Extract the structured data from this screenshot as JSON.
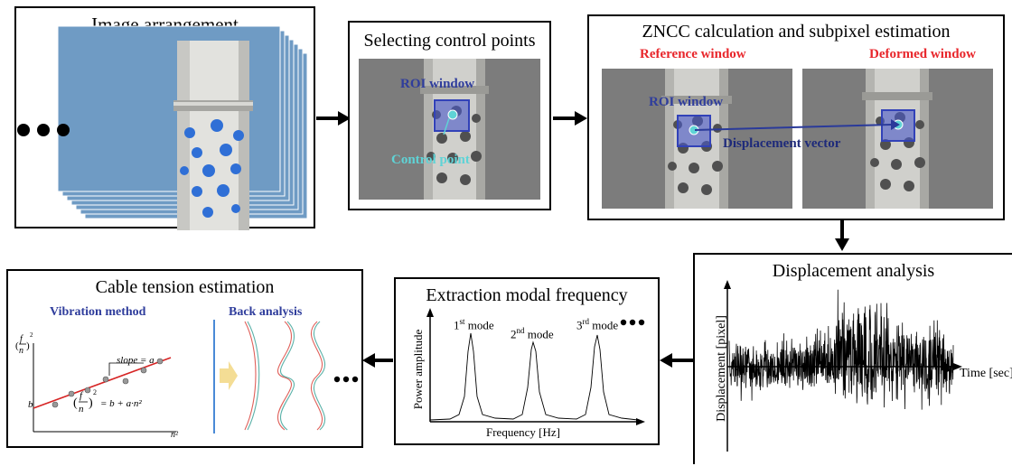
{
  "colors": {
    "photo_bg": "#7c7c7c",
    "pipe": "#d6d6d2",
    "roi": "#4a58c8",
    "control_point": "#5fd3d6",
    "reference_label": "#e8262b",
    "method_label": "#2f3d9c",
    "fit_line": "#d62424",
    "sky": "#6f9bc4"
  },
  "boxes": {
    "image_arrangement": {
      "title": "Image arrangement"
    },
    "selecting_control_points": {
      "title": "Selecting control points",
      "roi_label": "ROI window",
      "control_point_label": "Control point"
    },
    "zncc": {
      "title": "ZNCC calculation and subpixel estimation",
      "reference_label": "Reference window",
      "deformed_label": "Deformed window",
      "roi_label": "ROI window",
      "vector_label": "Displacement vector"
    },
    "displacement_analysis": {
      "title": "Displacement analysis",
      "ylabel": "Displacement [pixel]",
      "xlabel": "Time [sec]"
    },
    "extraction_modal": {
      "title": "Extraction modal frequency",
      "ylabel": "Power amplitude",
      "xlabel": "Frequency [Hz]",
      "modes": [
        {
          "num": "1",
          "sup": "st",
          "word": " mode"
        },
        {
          "num": "2",
          "sup": "nd",
          "word": " mode"
        },
        {
          "num": "3",
          "sup": "rd",
          "word": " mode"
        }
      ]
    },
    "cable_tension": {
      "title": "Cable tension estimation",
      "vibration_label": "Vibration method",
      "back_label": "Back analysis",
      "slope_label": "slope = a",
      "b_label": "b",
      "n2_label": "n²",
      "eq_rhs": "= b + a·n²"
    }
  },
  "chart_data": [
    {
      "type": "line",
      "title": "Displacement analysis",
      "xlabel": "Time [sec]",
      "ylabel": "Displacement [pixel]",
      "grid": false,
      "description_series": "random vibration displacement signal"
    },
    {
      "type": "line",
      "title": "Extraction modal frequency",
      "xlabel": "Frequency [Hz]",
      "ylabel": "Power amplitude",
      "grid": false,
      "peaks": [
        "1st mode",
        "2nd mode",
        "3rd mode"
      ]
    }
  ]
}
